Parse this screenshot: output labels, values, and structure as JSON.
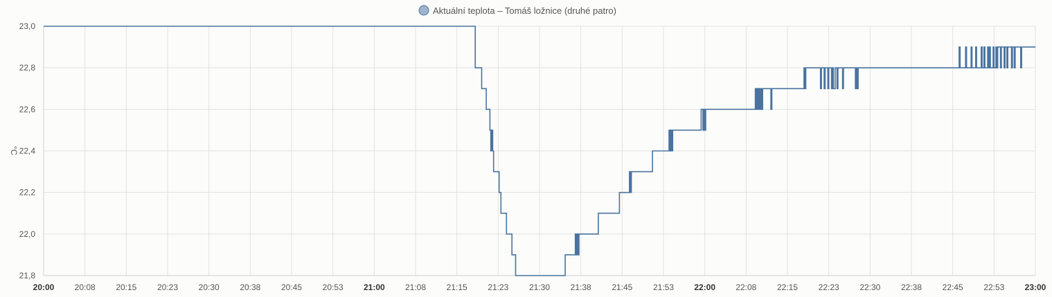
{
  "chart_data": {
    "type": "line",
    "title": "",
    "xlabel": "",
    "ylabel": "°C",
    "legend_position": "top-center",
    "grid": true,
    "line_color": "#4a73a0",
    "legend_marker_color": "#9fb3cc",
    "ylim": [
      21.8,
      23.0
    ],
    "y_ticks": [
      "21,8",
      "22,0",
      "22,2",
      "22,4",
      "22,6",
      "22,8",
      "23,0"
    ],
    "xlim": [
      "20:00",
      "23:00"
    ],
    "x_ticks": [
      {
        "time": "20:00",
        "label": "20:00",
        "major": true
      },
      {
        "time": "20:07:30",
        "label": "20:08",
        "major": false
      },
      {
        "time": "20:15",
        "label": "20:15",
        "major": false
      },
      {
        "time": "20:22:30",
        "label": "20:23",
        "major": false
      },
      {
        "time": "20:30",
        "label": "20:30",
        "major": false
      },
      {
        "time": "20:37:30",
        "label": "20:38",
        "major": false
      },
      {
        "time": "20:45",
        "label": "20:45",
        "major": false
      },
      {
        "time": "20:52:30",
        "label": "20:53",
        "major": false
      },
      {
        "time": "21:00",
        "label": "21:00",
        "major": true
      },
      {
        "time": "21:07:30",
        "label": "21:08",
        "major": false
      },
      {
        "time": "21:15",
        "label": "21:15",
        "major": false
      },
      {
        "time": "21:22:30",
        "label": "21:23",
        "major": false
      },
      {
        "time": "21:30",
        "label": "21:30",
        "major": false
      },
      {
        "time": "21:37:30",
        "label": "21:38",
        "major": false
      },
      {
        "time": "21:45",
        "label": "21:45",
        "major": false
      },
      {
        "time": "21:52:30",
        "label": "21:53",
        "major": false
      },
      {
        "time": "22:00",
        "label": "22:00",
        "major": true
      },
      {
        "time": "22:07:30",
        "label": "22:08",
        "major": false
      },
      {
        "time": "22:15",
        "label": "22:15",
        "major": false
      },
      {
        "time": "22:22:30",
        "label": "22:23",
        "major": false
      },
      {
        "time": "22:30",
        "label": "22:30",
        "major": false
      },
      {
        "time": "22:37:30",
        "label": "22:38",
        "major": false
      },
      {
        "time": "22:45",
        "label": "22:45",
        "major": false
      },
      {
        "time": "22:52:30",
        "label": "22:53",
        "major": false
      },
      {
        "time": "23:00",
        "label": "23:00",
        "major": true
      }
    ],
    "series": [
      {
        "name": "Aktuální teplota – Tomáš ložnice (druhé patro)",
        "step": true,
        "points": [
          [
            "20:00",
            23.0
          ],
          [
            "21:18:00",
            23.0
          ],
          [
            "21:18:20",
            22.8
          ],
          [
            "21:19:30",
            22.7
          ],
          [
            "21:20:20",
            22.6
          ],
          [
            "21:21:00",
            22.5
          ],
          [
            "21:21:10",
            22.4
          ],
          [
            "21:21:20",
            22.5
          ],
          [
            "21:21:30",
            22.4
          ],
          [
            "21:21:40",
            22.3
          ],
          [
            "21:22:40",
            22.2
          ],
          [
            "21:23:00",
            22.1
          ],
          [
            "21:24:00",
            22.0
          ],
          [
            "21:25:00",
            21.9
          ],
          [
            "21:25:40",
            21.8
          ],
          [
            "21:34:40",
            21.9
          ],
          [
            "21:36:30",
            22.0
          ],
          [
            "21:36:40",
            21.9
          ],
          [
            "21:36:50",
            22.0
          ],
          [
            "21:37:00",
            21.9
          ],
          [
            "21:37:10",
            22.0
          ],
          [
            "21:40:40",
            22.1
          ],
          [
            "21:44:30",
            22.2
          ],
          [
            "21:46:20",
            22.3
          ],
          [
            "21:46:30",
            22.2
          ],
          [
            "21:46:40",
            22.3
          ],
          [
            "21:50:30",
            22.4
          ],
          [
            "21:53:30",
            22.5
          ],
          [
            "21:53:40",
            22.4
          ],
          [
            "21:53:50",
            22.5
          ],
          [
            "21:54:00",
            22.4
          ],
          [
            "21:54:10",
            22.5
          ],
          [
            "21:59:20",
            22.6
          ],
          [
            "21:59:40",
            22.5
          ],
          [
            "21:59:50",
            22.6
          ],
          [
            "22:00:00",
            22.5
          ],
          [
            "22:00:10",
            22.6
          ],
          [
            "22:09:10",
            22.7
          ],
          [
            "22:09:20",
            22.6
          ],
          [
            "22:09:30",
            22.7
          ],
          [
            "22:09:40",
            22.6
          ],
          [
            "22:09:50",
            22.7
          ],
          [
            "22:10:00",
            22.6
          ],
          [
            "22:10:10",
            22.7
          ],
          [
            "22:10:20",
            22.6
          ],
          [
            "22:10:30",
            22.7
          ],
          [
            "22:12:00",
            22.6
          ],
          [
            "22:12:10",
            22.7
          ],
          [
            "22:18:00",
            22.8
          ],
          [
            "22:18:10",
            22.7
          ],
          [
            "22:18:20",
            22.8
          ],
          [
            "22:21:00",
            22.7
          ],
          [
            "22:21:10",
            22.8
          ],
          [
            "22:21:40",
            22.7
          ],
          [
            "22:21:50",
            22.8
          ],
          [
            "22:22:20",
            22.7
          ],
          [
            "22:22:30",
            22.8
          ],
          [
            "22:23:00",
            22.7
          ],
          [
            "22:23:10",
            22.8
          ],
          [
            "22:23:20",
            22.7
          ],
          [
            "22:23:40",
            22.8
          ],
          [
            "22:24:00",
            22.7
          ],
          [
            "22:24:10",
            22.8
          ],
          [
            "22:25:00",
            22.7
          ],
          [
            "22:25:10",
            22.8
          ],
          [
            "22:27:20",
            22.7
          ],
          [
            "22:27:30",
            22.8
          ],
          [
            "22:27:40",
            22.7
          ],
          [
            "22:27:50",
            22.8
          ],
          [
            "22:46:10",
            22.9
          ],
          [
            "22:46:20",
            22.8
          ],
          [
            "22:47:20",
            22.9
          ],
          [
            "22:47:30",
            22.8
          ],
          [
            "22:48:20",
            22.9
          ],
          [
            "22:48:30",
            22.8
          ],
          [
            "22:49:10",
            22.9
          ],
          [
            "22:49:20",
            22.8
          ],
          [
            "22:50:10",
            22.9
          ],
          [
            "22:50:20",
            22.8
          ],
          [
            "22:50:40",
            22.9
          ],
          [
            "22:50:50",
            22.8
          ],
          [
            "22:51:20",
            22.9
          ],
          [
            "22:51:30",
            22.8
          ],
          [
            "22:51:40",
            22.9
          ],
          [
            "22:51:50",
            22.8
          ],
          [
            "22:52:20",
            22.9
          ],
          [
            "22:52:30",
            22.8
          ],
          [
            "22:52:50",
            22.9
          ],
          [
            "22:53:00",
            22.8
          ],
          [
            "22:53:10",
            22.9
          ],
          [
            "22:53:40",
            22.8
          ],
          [
            "22:53:50",
            22.9
          ],
          [
            "22:54:20",
            22.8
          ],
          [
            "22:54:30",
            22.9
          ],
          [
            "22:54:50",
            22.8
          ],
          [
            "22:55:00",
            22.9
          ],
          [
            "22:55:40",
            22.8
          ],
          [
            "22:55:50",
            22.9
          ],
          [
            "22:56:10",
            22.8
          ],
          [
            "22:56:20",
            22.9
          ],
          [
            "22:57:20",
            22.8
          ],
          [
            "22:57:30",
            22.9
          ],
          [
            "23:00:00",
            22.9
          ]
        ]
      }
    ]
  }
}
